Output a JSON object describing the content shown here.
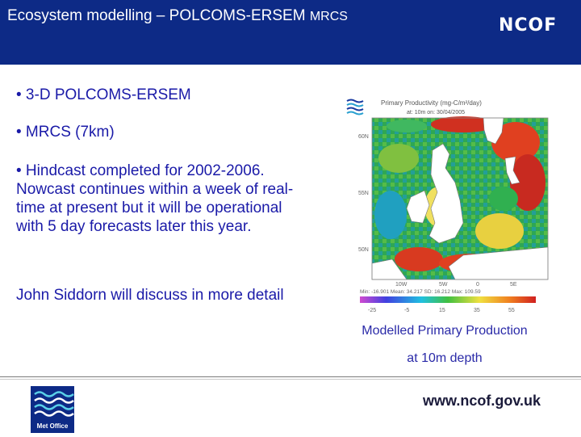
{
  "header": {
    "title": "Ecosystem modelling – POLCOMS-ERSEM",
    "title_suffix": "MRCS",
    "logo_text": "NCOF",
    "background_color": "#0d2a86"
  },
  "bullets": [
    "• 3-D POLCOMS-ERSEM",
    "• MRCS (7km)",
    "• Hindcast completed for 2002-2006. Nowcast continues within a week of real-time at present but it will be operational with 5 day forecasts later this year."
  ],
  "note": "John Siddorn will discuss in more detail",
  "figure": {
    "title_line1": "Primary Productivity (mg-C/m²/day)",
    "title_line2": "at: 10m on: 30/04/2005",
    "lat_labels": [
      "60N",
      "55N",
      "50N"
    ],
    "lon_labels": [
      "10W",
      "5W",
      "0",
      "5E"
    ],
    "stats": "Min: -16.901  Mean: 34.217  SD: 16.212  Max: 109.59",
    "colorbar_ticks": [
      "-25",
      "-5",
      "15",
      "35",
      "55"
    ],
    "icon": "met-office-wave-icon"
  },
  "caption": {
    "line1": "Modelled Primary Production",
    "line2": "at 10m depth"
  },
  "footer": {
    "logo_text": "Met Office",
    "url": "www.ncof.gov.uk"
  }
}
